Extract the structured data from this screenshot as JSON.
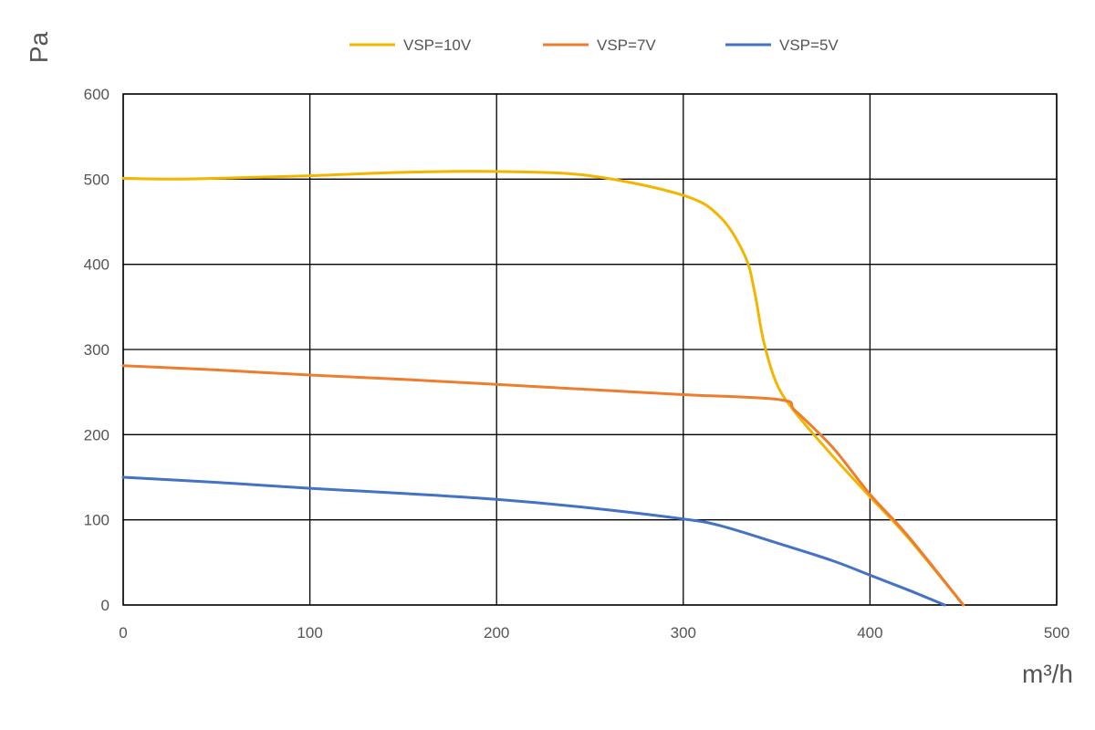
{
  "chart_data": {
    "type": "line",
    "xlabel": "m³/h",
    "ylabel": "Pa",
    "xlim": [
      0,
      500
    ],
    "ylim": [
      0,
      600
    ],
    "xticks": [
      0,
      100,
      200,
      300,
      400,
      500
    ],
    "yticks": [
      0,
      100,
      200,
      300,
      400,
      500,
      600
    ],
    "grid": true,
    "legend_position": "top",
    "series": [
      {
        "name": "VSP=10V",
        "color": "#F2B600",
        "points": [
          [
            0,
            501
          ],
          [
            25,
            500
          ],
          [
            50,
            501
          ],
          [
            100,
            504
          ],
          [
            150,
            508
          ],
          [
            200,
            509
          ],
          [
            250,
            504
          ],
          [
            300,
            481
          ],
          [
            320,
            455
          ],
          [
            333,
            410
          ],
          [
            338,
            370
          ],
          [
            343,
            310
          ],
          [
            350,
            260
          ],
          [
            360,
            226
          ],
          [
            380,
            175
          ],
          [
            400,
            127
          ],
          [
            420,
            80
          ],
          [
            450,
            0
          ]
        ]
      },
      {
        "name": "VSP=7V",
        "color": "#ED7D31",
        "points": [
          [
            0,
            281
          ],
          [
            50,
            276
          ],
          [
            100,
            270
          ],
          [
            150,
            265
          ],
          [
            200,
            259
          ],
          [
            250,
            253
          ],
          [
            300,
            247
          ],
          [
            352,
            241
          ],
          [
            360,
            228
          ],
          [
            380,
            185
          ],
          [
            400,
            130
          ],
          [
            420,
            82
          ],
          [
            450,
            0
          ]
        ]
      },
      {
        "name": "VSP=5V",
        "color": "#4472C4",
        "points": [
          [
            0,
            150
          ],
          [
            50,
            144
          ],
          [
            100,
            137
          ],
          [
            150,
            131
          ],
          [
            200,
            124
          ],
          [
            250,
            114
          ],
          [
            300,
            101
          ],
          [
            320,
            93
          ],
          [
            350,
            73
          ],
          [
            380,
            52
          ],
          [
            400,
            35
          ],
          [
            420,
            18
          ],
          [
            440,
            0
          ]
        ]
      }
    ]
  }
}
